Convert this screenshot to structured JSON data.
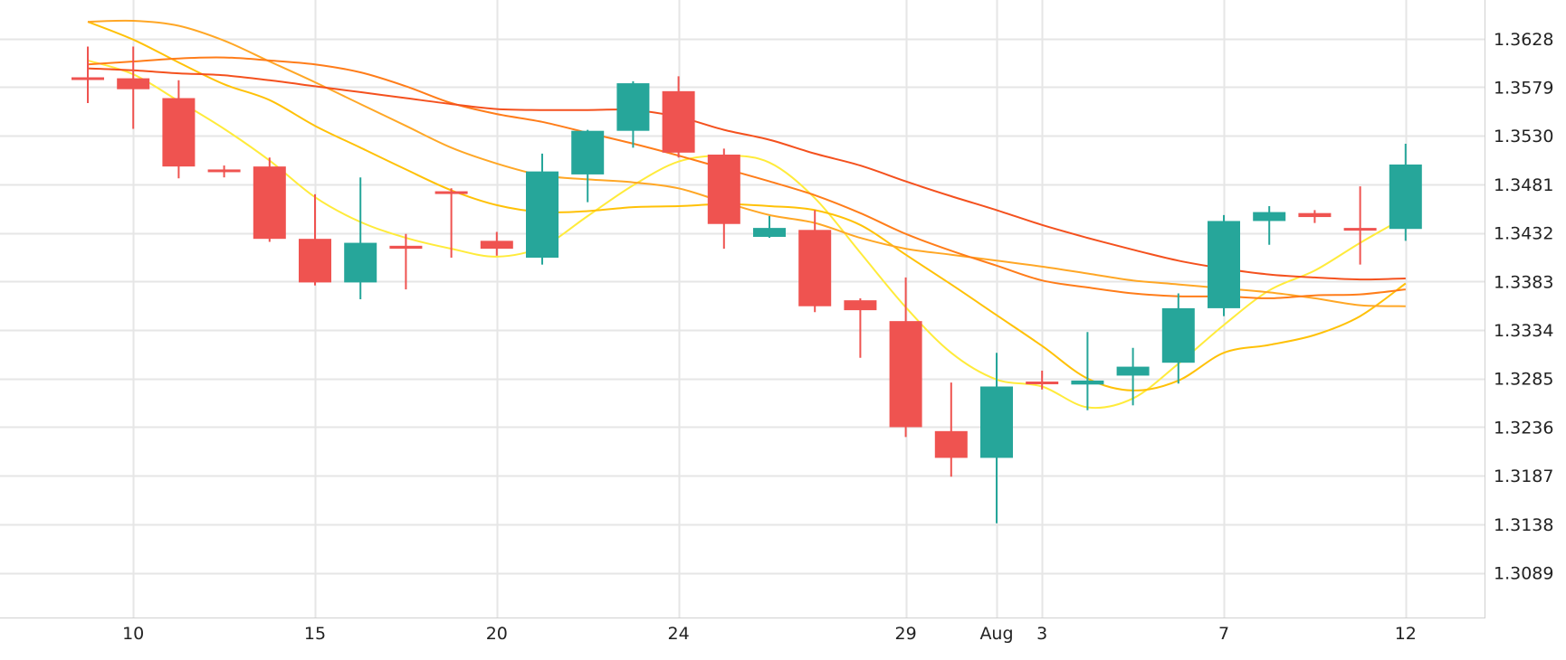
{
  "chart_data": {
    "type": "candlestick",
    "x_ticks": [
      "10",
      "15",
      "20",
      "24",
      "29",
      "Aug",
      "3",
      "7",
      "12"
    ],
    "y_ticks": [
      "1.3089",
      "1.3138",
      "1.3187",
      "1.3236",
      "1.3285",
      "1.3334",
      "1.3383",
      "1.3432",
      "1.3481",
      "1.3530",
      "1.3579",
      "1.3628"
    ],
    "ylim": [
      1.3043,
      1.3667
    ],
    "grid": true,
    "colors": {
      "up": "#26a69a",
      "down": "#ef5350",
      "grid": "#e6e6e6",
      "axis": "#c8c8c8"
    },
    "candles": [
      {
        "slot": 0,
        "open": 1.3589,
        "high": 1.362,
        "low": 1.3563,
        "close": 1.3589
      },
      {
        "slot": 1,
        "open": 1.3588,
        "high": 1.362,
        "low": 1.3537,
        "close": 1.3577
      },
      {
        "slot": 2,
        "open": 1.3568,
        "high": 1.3586,
        "low": 1.3487,
        "close": 1.3499
      },
      {
        "slot": 3,
        "open": 1.3496,
        "high": 1.35,
        "low": 1.3488,
        "close": 1.3496
      },
      {
        "slot": 4,
        "open": 1.3499,
        "high": 1.3508,
        "low": 1.3423,
        "close": 1.3426
      },
      {
        "slot": 5,
        "open": 1.3426,
        "high": 1.3471,
        "low": 1.3379,
        "close": 1.3382
      },
      {
        "slot": 6,
        "open": 1.3382,
        "high": 1.3488,
        "low": 1.3365,
        "close": 1.3422
      },
      {
        "slot": 7,
        "open": 1.3419,
        "high": 1.3431,
        "low": 1.3375,
        "close": 1.3416
      },
      {
        "slot": 8,
        "open": 1.3474,
        "high": 1.3477,
        "low": 1.3407,
        "close": 1.3474
      },
      {
        "slot": 9,
        "open": 1.3424,
        "high": 1.3433,
        "low": 1.3409,
        "close": 1.3416
      },
      {
        "slot": 10,
        "open": 1.3407,
        "high": 1.3512,
        "low": 1.34,
        "close": 1.3494
      },
      {
        "slot": 11,
        "open": 1.3491,
        "high": 1.3536,
        "low": 1.3463,
        "close": 1.3535
      },
      {
        "slot": 12,
        "open": 1.3535,
        "high": 1.3585,
        "low": 1.3518,
        "close": 1.3583
      },
      {
        "slot": 13,
        "open": 1.3575,
        "high": 1.359,
        "low": 1.3508,
        "close": 1.3513
      },
      {
        "slot": 14,
        "open": 1.3511,
        "high": 1.3517,
        "low": 1.3416,
        "close": 1.3441
      },
      {
        "slot": 15,
        "open": 1.3428,
        "high": 1.3449,
        "low": 1.3427,
        "close": 1.3437
      },
      {
        "slot": 16,
        "open": 1.3435,
        "high": 1.3455,
        "low": 1.3352,
        "close": 1.3358
      },
      {
        "slot": 17,
        "open": 1.3364,
        "high": 1.3366,
        "low": 1.3306,
        "close": 1.3354
      },
      {
        "slot": 18,
        "open": 1.3343,
        "high": 1.3387,
        "low": 1.3226,
        "close": 1.3236
      },
      {
        "slot": 19,
        "open": 1.3232,
        "high": 1.3281,
        "low": 1.3186,
        "close": 1.3205
      },
      {
        "slot": 20,
        "open": 1.3205,
        "high": 1.3311,
        "low": 1.3139,
        "close": 1.3277
      },
      {
        "slot": 21,
        "open": 1.3282,
        "high": 1.3293,
        "low": 1.3274,
        "close": 1.3282
      },
      {
        "slot": 22,
        "open": 1.3279,
        "high": 1.3332,
        "low": 1.3253,
        "close": 1.3283
      },
      {
        "slot": 23,
        "open": 1.3288,
        "high": 1.3316,
        "low": 1.3258,
        "close": 1.3297
      },
      {
        "slot": 24,
        "open": 1.3301,
        "high": 1.3371,
        "low": 1.328,
        "close": 1.3356
      },
      {
        "slot": 25,
        "open": 1.3356,
        "high": 1.345,
        "low": 1.3348,
        "close": 1.3444
      },
      {
        "slot": 26,
        "open": 1.3444,
        "high": 1.3459,
        "low": 1.342,
        "close": 1.3453
      },
      {
        "slot": 27,
        "open": 1.3452,
        "high": 1.3455,
        "low": 1.3442,
        "close": 1.3448
      },
      {
        "slot": 28,
        "open": 1.3437,
        "high": 1.3479,
        "low": 1.34,
        "close": 1.3437
      },
      {
        "slot": 29,
        "open": 1.3436,
        "high": 1.3522,
        "low": 1.3424,
        "close": 1.3501
      }
    ],
    "tick_slots": [
      1,
      5,
      9,
      13,
      18,
      20,
      21,
      25,
      29
    ],
    "overlays": [
      {
        "color": "#ffeb3b",
        "points": [
          [
            0,
            1.3606
          ],
          [
            1,
            1.3592
          ],
          [
            2,
            1.3565
          ],
          [
            3,
            1.3537
          ],
          [
            4,
            1.3505
          ],
          [
            5,
            1.3468
          ],
          [
            6,
            1.3443
          ],
          [
            7,
            1.3427
          ],
          [
            8,
            1.3416
          ],
          [
            9,
            1.3408
          ],
          [
            10,
            1.3418
          ],
          [
            11,
            1.3449
          ],
          [
            12,
            1.348
          ],
          [
            13,
            1.3504
          ],
          [
            14,
            1.351
          ],
          [
            15,
            1.3503
          ],
          [
            16,
            1.3467
          ],
          [
            17,
            1.3412
          ],
          [
            18,
            1.3357
          ],
          [
            19,
            1.3311
          ],
          [
            20,
            1.3284
          ],
          [
            21,
            1.3277
          ],
          [
            22,
            1.3256
          ],
          [
            23,
            1.3265
          ],
          [
            24,
            1.33
          ],
          [
            25,
            1.3339
          ],
          [
            26,
            1.3374
          ],
          [
            27,
            1.3394
          ],
          [
            28,
            1.3422
          ],
          [
            29,
            1.3448
          ]
        ]
      },
      {
        "color": "#ffc107",
        "points": [
          [
            0,
            1.3645
          ],
          [
            1,
            1.3627
          ],
          [
            2,
            1.3604
          ],
          [
            3,
            1.3582
          ],
          [
            4,
            1.3566
          ],
          [
            5,
            1.354
          ],
          [
            6,
            1.3518
          ],
          [
            7,
            1.3496
          ],
          [
            8,
            1.3475
          ],
          [
            9,
            1.346
          ],
          [
            10,
            1.3453
          ],
          [
            11,
            1.3454
          ],
          [
            12,
            1.3458
          ],
          [
            13,
            1.3459
          ],
          [
            14,
            1.3461
          ],
          [
            15,
            1.3459
          ],
          [
            16,
            1.3455
          ],
          [
            17,
            1.344
          ],
          [
            18,
            1.341
          ],
          [
            19,
            1.338
          ],
          [
            20,
            1.3349
          ],
          [
            21,
            1.3318
          ],
          [
            22,
            1.3285
          ],
          [
            23,
            1.3273
          ],
          [
            24,
            1.3283
          ],
          [
            25,
            1.3311
          ],
          [
            26,
            1.3319
          ],
          [
            27,
            1.3329
          ],
          [
            28,
            1.3348
          ],
          [
            29,
            1.3381
          ]
        ]
      },
      {
        "color": "#ffa726",
        "points": [
          [
            0,
            1.3645
          ],
          [
            1,
            1.3646
          ],
          [
            2,
            1.3641
          ],
          [
            3,
            1.3626
          ],
          [
            4,
            1.3605
          ],
          [
            5,
            1.3584
          ],
          [
            6,
            1.3562
          ],
          [
            7,
            1.354
          ],
          [
            8,
            1.3518
          ],
          [
            9,
            1.3502
          ],
          [
            10,
            1.349
          ],
          [
            11,
            1.3486
          ],
          [
            12,
            1.3483
          ],
          [
            13,
            1.3477
          ],
          [
            14,
            1.3463
          ],
          [
            15,
            1.345
          ],
          [
            16,
            1.3442
          ],
          [
            17,
            1.3427
          ],
          [
            18,
            1.3416
          ],
          [
            19,
            1.341
          ],
          [
            20,
            1.3404
          ],
          [
            21,
            1.3398
          ],
          [
            22,
            1.3391
          ],
          [
            23,
            1.3384
          ],
          [
            24,
            1.338
          ],
          [
            25,
            1.3376
          ],
          [
            26,
            1.3372
          ],
          [
            27,
            1.3366
          ],
          [
            28,
            1.3359
          ],
          [
            29,
            1.3358
          ]
        ]
      },
      {
        "color": "#ff7d1a",
        "points": [
          [
            0,
            1.3602
          ],
          [
            1,
            1.3605
          ],
          [
            2,
            1.3608
          ],
          [
            3,
            1.3609
          ],
          [
            4,
            1.3606
          ],
          [
            5,
            1.3602
          ],
          [
            6,
            1.3594
          ],
          [
            7,
            1.358
          ],
          [
            8,
            1.3563
          ],
          [
            9,
            1.3552
          ],
          [
            10,
            1.3544
          ],
          [
            11,
            1.3533
          ],
          [
            12,
            1.3522
          ],
          [
            13,
            1.351
          ],
          [
            14,
            1.3497
          ],
          [
            15,
            1.3484
          ],
          [
            16,
            1.347
          ],
          [
            17,
            1.3452
          ],
          [
            18,
            1.3431
          ],
          [
            19,
            1.3414
          ],
          [
            20,
            1.3399
          ],
          [
            21,
            1.3384
          ],
          [
            22,
            1.3377
          ],
          [
            23,
            1.3371
          ],
          [
            24,
            1.3368
          ],
          [
            25,
            1.3368
          ],
          [
            26,
            1.3366
          ],
          [
            27,
            1.3369
          ],
          [
            28,
            1.337
          ],
          [
            29,
            1.3375
          ]
        ]
      },
      {
        "color": "#f4511e",
        "points": [
          [
            0,
            1.3598
          ],
          [
            1,
            1.3596
          ],
          [
            2,
            1.3593
          ],
          [
            3,
            1.3591
          ],
          [
            4,
            1.3586
          ],
          [
            5,
            1.358
          ],
          [
            6,
            1.3574
          ],
          [
            7,
            1.3568
          ],
          [
            8,
            1.3562
          ],
          [
            9,
            1.3557
          ],
          [
            10,
            1.3556
          ],
          [
            11,
            1.3556
          ],
          [
            12,
            1.3556
          ],
          [
            13,
            1.3549
          ],
          [
            14,
            1.3536
          ],
          [
            15,
            1.3526
          ],
          [
            16,
            1.3512
          ],
          [
            17,
            1.35
          ],
          [
            18,
            1.3484
          ],
          [
            19,
            1.3469
          ],
          [
            20,
            1.3455
          ],
          [
            21,
            1.344
          ],
          [
            22,
            1.3427
          ],
          [
            23,
            1.3415
          ],
          [
            24,
            1.3404
          ],
          [
            25,
            1.3396
          ],
          [
            26,
            1.339
          ],
          [
            27,
            1.3387
          ],
          [
            28,
            1.3385
          ],
          [
            29,
            1.3386
          ]
        ]
      }
    ]
  }
}
